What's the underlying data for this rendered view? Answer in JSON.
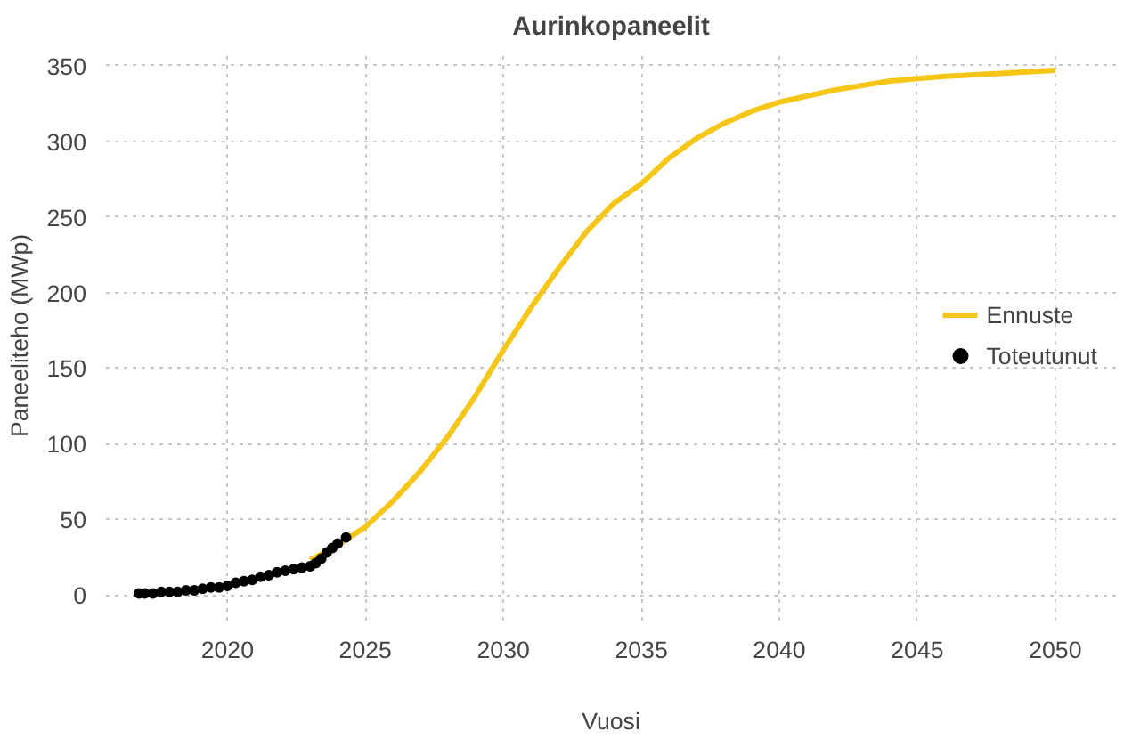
{
  "chart_data": {
    "type": "line",
    "title": "Aurinkopaneelit",
    "xlabel": "Vuosi",
    "ylabel": "Paneeliteho (MWp)",
    "xlim": [
      2015.6,
      2052.2
    ],
    "ylim": [
      -17,
      360
    ],
    "xticks": [
      2020,
      2025,
      2030,
      2035,
      2040,
      2045,
      2050
    ],
    "yticks": [
      0,
      50,
      100,
      150,
      200,
      250,
      300,
      350
    ],
    "grid": true,
    "legend": "right",
    "series": [
      {
        "name": "Ennuste",
        "color": "#f5c518",
        "x": [
          2023,
          2024,
          2025,
          2026,
          2027,
          2028,
          2029,
          2030,
          2031,
          2032,
          2033,
          2034,
          2035,
          2036,
          2037,
          2038,
          2039,
          2040,
          2042,
          2044,
          2046,
          2048,
          2050
        ],
        "values": [
          23,
          33,
          45,
          62,
          82,
          105,
          132,
          162,
          190,
          216,
          240,
          259,
          272,
          289,
          302,
          312,
          320,
          326,
          334,
          340,
          343,
          345,
          347
        ]
      },
      {
        "name": "Toteutunut",
        "type": "scatter",
        "marker": "circle",
        "color": "#000000",
        "x": [
          2016.8,
          2017.0,
          2017.3,
          2017.6,
          2017.9,
          2018.2,
          2018.5,
          2018.8,
          2019.1,
          2019.4,
          2019.7,
          2020.0,
          2020.3,
          2020.6,
          2020.9,
          2021.2,
          2021.5,
          2021.8,
          2022.1,
          2022.4,
          2022.7,
          2023.0,
          2023.2,
          2023.4,
          2023.6,
          2023.8,
          2024.0,
          2024.3
        ],
        "values": [
          1,
          1,
          1,
          2,
          2,
          2,
          3,
          3,
          4,
          5,
          5,
          6,
          8,
          9,
          10,
          12,
          13,
          15,
          16,
          17,
          18,
          19,
          21,
          24,
          28,
          31,
          34,
          38
        ]
      }
    ]
  }
}
